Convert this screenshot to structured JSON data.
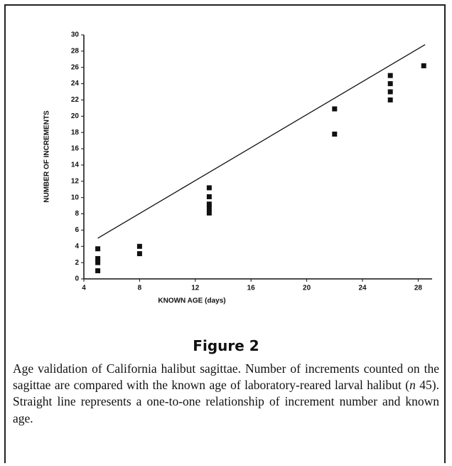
{
  "chart_data": {
    "type": "scatter",
    "xlabel": "KNOWN AGE (days)",
    "ylabel": "NUMBER OF INCREMENTS",
    "xlim": [
      4,
      29
    ],
    "ylim": [
      0,
      30
    ],
    "xticks": [
      4,
      8,
      12,
      16,
      20,
      24,
      28
    ],
    "yticks": [
      0,
      2,
      4,
      6,
      8,
      10,
      12,
      14,
      16,
      18,
      20,
      22,
      24,
      26,
      28,
      30
    ],
    "color": "#111111",
    "points": {
      "x": [
        5,
        5,
        5,
        5,
        8,
        8,
        13,
        13,
        13,
        13,
        13,
        22,
        22,
        26,
        26,
        26,
        26,
        28.4
      ],
      "y": [
        3.7,
        2.5,
        2,
        1,
        4,
        3.1,
        11.2,
        10.1,
        9.2,
        8.7,
        8.1,
        20.9,
        17.8,
        25,
        24,
        23,
        22,
        26.2
      ]
    },
    "line": {
      "x": [
        5,
        28.5
      ],
      "y": [
        5,
        28.8
      ]
    }
  },
  "figure": {
    "title": "Figure 2",
    "caption": [
      "Age validation of California halibut sagittae. Number of increments counted on the sagittae are compared with the known age of laboratory-reared larval halibut (",
      "n",
      " 45). Straight line represents a one-to-one relationship of increment number and known age."
    ]
  }
}
